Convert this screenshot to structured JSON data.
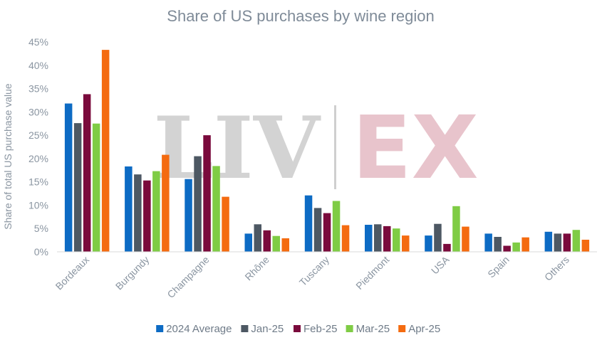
{
  "chart_data": {
    "type": "bar",
    "title": "Share of US purchases by wine region",
    "ylabel": "Share of total US purchase value",
    "xlabel": "",
    "ylim": [
      0,
      45
    ],
    "yticks": [
      "0%",
      "5%",
      "10%",
      "15%",
      "20%",
      "25%",
      "30%",
      "35%",
      "40%",
      "45%"
    ],
    "ytick_values": [
      0,
      5,
      10,
      15,
      20,
      25,
      30,
      35,
      40,
      45
    ],
    "grid": false,
    "legend_position": "bottom",
    "watermark": {
      "left": "LIV",
      "right": "EX"
    },
    "categories": [
      "Bordeaux",
      "Burgundy",
      "Champagne",
      "Rhône",
      "Tuscany",
      "Piedmont",
      "USA",
      "Spain",
      "Others"
    ],
    "series": [
      {
        "name": "2024 Average",
        "color": "#0d6bc4",
        "values": [
          31.8,
          18.3,
          15.6,
          3.9,
          12.1,
          5.8,
          3.5,
          3.9,
          4.3
        ]
      },
      {
        "name": "Jan-25",
        "color": "#4d5863",
        "values": [
          27.6,
          16.6,
          20.5,
          5.9,
          9.4,
          5.9,
          6.0,
          3.2,
          3.9
        ]
      },
      {
        "name": "Feb-25",
        "color": "#7a0a3c",
        "values": [
          33.8,
          15.3,
          25.0,
          4.6,
          8.3,
          5.5,
          1.7,
          1.3,
          3.9
        ]
      },
      {
        "name": "Mar-25",
        "color": "#7fcc45",
        "values": [
          27.5,
          17.3,
          18.4,
          3.4,
          10.9,
          5.0,
          9.8,
          2.0,
          4.7
        ]
      },
      {
        "name": "Apr-25",
        "color": "#f46b10",
        "values": [
          43.3,
          20.8,
          11.8,
          2.9,
          5.7,
          3.5,
          5.4,
          3.1,
          2.6
        ]
      }
    ]
  }
}
